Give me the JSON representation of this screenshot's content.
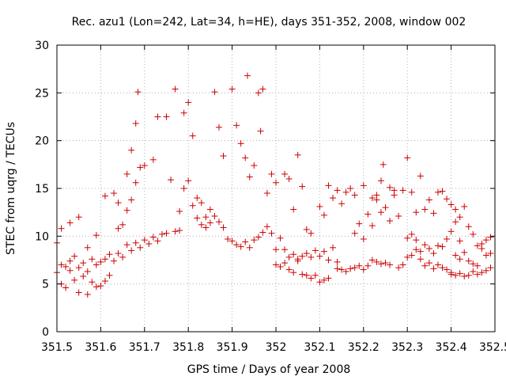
{
  "chart_data": {
    "type": "scatter",
    "title": "Rec. azu1 (Lon=242, Lat=34, h=HE), days 351-352, 2008, window 002",
    "xlabel": "GPS time / Days of year 2008",
    "ylabel": "STEC from uqrg / TECUs",
    "xlim": [
      351.5,
      352.5
    ],
    "ylim": [
      0,
      30
    ],
    "x_ticks": [
      "351.5",
      "351.6",
      "351.7",
      "351.8",
      "351.9",
      "352",
      "352.1",
      "352.2",
      "352.3",
      "352.4",
      "352.5"
    ],
    "y_ticks": [
      "0",
      "5",
      "10",
      "15",
      "20",
      "25",
      "30"
    ],
    "grid": true,
    "marker": "+",
    "series_color": "#cc0000",
    "points": [
      [
        351.5,
        6.2
      ],
      [
        351.51,
        5.0
      ],
      [
        351.52,
        4.6
      ],
      [
        351.53,
        6.4
      ],
      [
        351.54,
        5.4
      ],
      [
        351.55,
        4.1
      ],
      [
        351.56,
        5.8
      ],
      [
        351.57,
        3.9
      ],
      [
        351.58,
        5.2
      ],
      [
        351.59,
        4.7
      ],
      [
        351.6,
        4.8
      ],
      [
        351.61,
        5.3
      ],
      [
        351.62,
        5.9
      ],
      [
        351.5,
        9.3
      ],
      [
        351.51,
        7.0
      ],
      [
        351.52,
        6.8
      ],
      [
        351.53,
        7.4
      ],
      [
        351.54,
        7.9
      ],
      [
        351.55,
        6.7
      ],
      [
        351.56,
        7.2
      ],
      [
        351.57,
        6.3
      ],
      [
        351.58,
        7.6
      ],
      [
        351.59,
        7.0
      ],
      [
        351.6,
        7.3
      ],
      [
        351.61,
        7.6
      ],
      [
        351.62,
        8.1
      ],
      [
        351.51,
        10.8
      ],
      [
        351.53,
        11.4
      ],
      [
        351.55,
        12.0
      ],
      [
        351.57,
        8.8
      ],
      [
        351.59,
        10.1
      ],
      [
        351.61,
        14.2
      ],
      [
        351.63,
        14.5
      ],
      [
        351.64,
        13.5
      ],
      [
        351.66,
        16.5
      ],
      [
        351.67,
        19.0
      ],
      [
        351.68,
        21.8
      ],
      [
        351.685,
        25.1
      ],
      [
        351.64,
        10.8
      ],
      [
        351.65,
        11.2
      ],
      [
        351.66,
        12.7
      ],
      [
        351.67,
        13.8
      ],
      [
        351.68,
        15.6
      ],
      [
        351.69,
        17.2
      ],
      [
        351.7,
        17.4
      ],
      [
        351.72,
        18.0
      ],
      [
        351.73,
        22.5
      ],
      [
        351.75,
        22.5
      ],
      [
        351.76,
        15.9
      ],
      [
        351.77,
        25.4
      ],
      [
        351.63,
        7.4
      ],
      [
        351.64,
        8.2
      ],
      [
        351.65,
        7.8
      ],
      [
        351.66,
        9.1
      ],
      [
        351.67,
        8.5
      ],
      [
        351.68,
        9.3
      ],
      [
        351.69,
        8.8
      ],
      [
        351.7,
        9.6
      ],
      [
        351.71,
        9.2
      ],
      [
        351.72,
        9.9
      ],
      [
        351.73,
        9.5
      ],
      [
        351.74,
        10.2
      ],
      [
        351.75,
        10.3
      ],
      [
        351.77,
        10.5
      ],
      [
        351.78,
        10.6
      ],
      [
        351.79,
        22.9
      ],
      [
        351.8,
        24.0
      ],
      [
        351.81,
        20.5
      ],
      [
        351.82,
        14.0
      ],
      [
        351.83,
        13.5
      ],
      [
        351.84,
        12.0
      ],
      [
        351.85,
        12.8
      ],
      [
        351.86,
        25.1
      ],
      [
        351.87,
        21.4
      ],
      [
        351.88,
        18.4
      ],
      [
        351.78,
        12.6
      ],
      [
        351.79,
        15.0
      ],
      [
        351.8,
        15.8
      ],
      [
        351.81,
        13.2
      ],
      [
        351.82,
        11.9
      ],
      [
        351.83,
        11.2
      ],
      [
        351.84,
        10.9
      ],
      [
        351.85,
        11.4
      ],
      [
        351.86,
        12.1
      ],
      [
        351.87,
        11.5
      ],
      [
        351.88,
        10.9
      ],
      [
        351.89,
        9.7
      ],
      [
        351.9,
        25.4
      ],
      [
        351.91,
        21.6
      ],
      [
        351.92,
        19.7
      ],
      [
        351.93,
        18.2
      ],
      [
        351.935,
        26.8
      ],
      [
        351.94,
        16.2
      ],
      [
        351.95,
        17.4
      ],
      [
        351.96,
        25.0
      ],
      [
        351.965,
        21.0
      ],
      [
        351.97,
        25.4
      ],
      [
        351.98,
        14.5
      ],
      [
        351.99,
        16.5
      ],
      [
        351.9,
        9.5
      ],
      [
        351.91,
        9.1
      ],
      [
        351.92,
        8.9
      ],
      [
        351.93,
        9.4
      ],
      [
        351.94,
        8.8
      ],
      [
        351.95,
        9.6
      ],
      [
        351.96,
        9.9
      ],
      [
        351.97,
        10.4
      ],
      [
        351.98,
        11.0
      ],
      [
        351.99,
        10.3
      ],
      [
        352.0,
        8.6
      ],
      [
        352.01,
        9.8
      ],
      [
        352.0,
        15.6
      ],
      [
        352.02,
        16.5
      ],
      [
        352.03,
        16.0
      ],
      [
        352.04,
        12.8
      ],
      [
        352.05,
        18.5
      ],
      [
        352.06,
        15.2
      ],
      [
        352.07,
        10.7
      ],
      [
        352.08,
        10.3
      ],
      [
        352.1,
        13.1
      ],
      [
        352.11,
        12.2
      ],
      [
        352.12,
        15.3
      ],
      [
        352.13,
        14.0
      ],
      [
        352.0,
        7.0
      ],
      [
        352.01,
        6.8
      ],
      [
        352.02,
        7.2
      ],
      [
        352.03,
        6.5
      ],
      [
        352.04,
        6.2
      ],
      [
        352.05,
        7.4
      ],
      [
        352.06,
        6.0
      ],
      [
        352.07,
        5.9
      ],
      [
        352.08,
        5.6
      ],
      [
        352.09,
        5.9
      ],
      [
        352.1,
        5.2
      ],
      [
        352.11,
        5.4
      ],
      [
        352.12,
        5.6
      ],
      [
        352.02,
        8.6
      ],
      [
        352.03,
        7.8
      ],
      [
        352.04,
        8.1
      ],
      [
        352.05,
        7.6
      ],
      [
        352.06,
        7.9
      ],
      [
        352.07,
        8.2
      ],
      [
        352.08,
        7.8
      ],
      [
        352.09,
        8.5
      ],
      [
        352.1,
        7.9
      ],
      [
        352.11,
        8.4
      ],
      [
        352.12,
        7.5
      ],
      [
        352.13,
        8.8
      ],
      [
        352.14,
        7.3
      ],
      [
        352.14,
        14.8
      ],
      [
        352.15,
        13.4
      ],
      [
        352.16,
        14.6
      ],
      [
        352.17,
        15.0
      ],
      [
        352.18,
        14.3
      ],
      [
        352.2,
        15.3
      ],
      [
        352.22,
        14.0
      ],
      [
        352.23,
        14.3
      ],
      [
        352.24,
        15.8
      ],
      [
        352.245,
        17.5
      ],
      [
        352.26,
        15.1
      ],
      [
        352.27,
        14.8
      ],
      [
        352.14,
        6.6
      ],
      [
        352.15,
        6.5
      ],
      [
        352.16,
        6.3
      ],
      [
        352.17,
        6.6
      ],
      [
        352.18,
        6.7
      ],
      [
        352.19,
        6.9
      ],
      [
        352.2,
        6.5
      ],
      [
        352.21,
        6.9
      ],
      [
        352.22,
        7.5
      ],
      [
        352.23,
        7.3
      ],
      [
        352.24,
        7.1
      ],
      [
        352.25,
        7.2
      ],
      [
        352.26,
        7.0
      ],
      [
        352.18,
        10.3
      ],
      [
        352.19,
        11.3
      ],
      [
        352.2,
        9.7
      ],
      [
        352.21,
        12.3
      ],
      [
        352.22,
        11.1
      ],
      [
        352.23,
        13.8
      ],
      [
        352.24,
        12.5
      ],
      [
        352.25,
        13.0
      ],
      [
        352.26,
        11.6
      ],
      [
        352.27,
        14.3
      ],
      [
        352.28,
        12.1
      ],
      [
        352.29,
        14.8
      ],
      [
        352.3,
        18.2
      ],
      [
        352.31,
        14.6
      ],
      [
        352.32,
        12.5
      ],
      [
        352.33,
        16.3
      ],
      [
        352.34,
        12.8
      ],
      [
        352.35,
        13.8
      ],
      [
        352.36,
        12.4
      ],
      [
        352.37,
        14.6
      ],
      [
        352.38,
        14.7
      ],
      [
        352.39,
        13.9
      ],
      [
        352.4,
        13.3
      ],
      [
        352.41,
        12.8
      ],
      [
        352.28,
        6.7
      ],
      [
        352.29,
        7.0
      ],
      [
        352.3,
        7.8
      ],
      [
        352.31,
        8.0
      ],
      [
        352.32,
        8.6
      ],
      [
        352.33,
        7.6
      ],
      [
        352.34,
        6.9
      ],
      [
        352.35,
        7.2
      ],
      [
        352.36,
        6.6
      ],
      [
        352.37,
        7.0
      ],
      [
        352.38,
        6.7
      ],
      [
        352.39,
        6.5
      ],
      [
        352.4,
        6.2
      ],
      [
        352.3,
        9.8
      ],
      [
        352.31,
        10.2
      ],
      [
        352.32,
        9.6
      ],
      [
        352.33,
        8.4
      ],
      [
        352.34,
        9.1
      ],
      [
        352.35,
        8.7
      ],
      [
        352.36,
        8.2
      ],
      [
        352.37,
        9.0
      ],
      [
        352.38,
        8.9
      ],
      [
        352.39,
        9.7
      ],
      [
        352.4,
        10.5
      ],
      [
        352.41,
        11.5
      ],
      [
        352.42,
        9.5
      ],
      [
        352.4,
        6.0
      ],
      [
        352.41,
        5.9
      ],
      [
        352.42,
        6.1
      ],
      [
        352.43,
        5.8
      ],
      [
        352.44,
        5.9
      ],
      [
        352.45,
        6.3
      ],
      [
        352.46,
        6.0
      ],
      [
        352.47,
        6.2
      ],
      [
        352.48,
        6.4
      ],
      [
        352.49,
        6.7
      ],
      [
        352.41,
        8.0
      ],
      [
        352.42,
        7.6
      ],
      [
        352.43,
        8.3
      ],
      [
        352.44,
        7.4
      ],
      [
        352.45,
        7.1
      ],
      [
        352.46,
        6.9
      ],
      [
        352.47,
        8.7
      ],
      [
        352.48,
        8.0
      ],
      [
        352.49,
        8.2
      ],
      [
        352.42,
        12.0
      ],
      [
        352.43,
        13.1
      ],
      [
        352.44,
        11.0
      ],
      [
        352.45,
        10.2
      ],
      [
        352.46,
        9.0
      ],
      [
        352.47,
        9.2
      ],
      [
        352.48,
        9.6
      ],
      [
        352.49,
        9.9
      ]
    ]
  }
}
